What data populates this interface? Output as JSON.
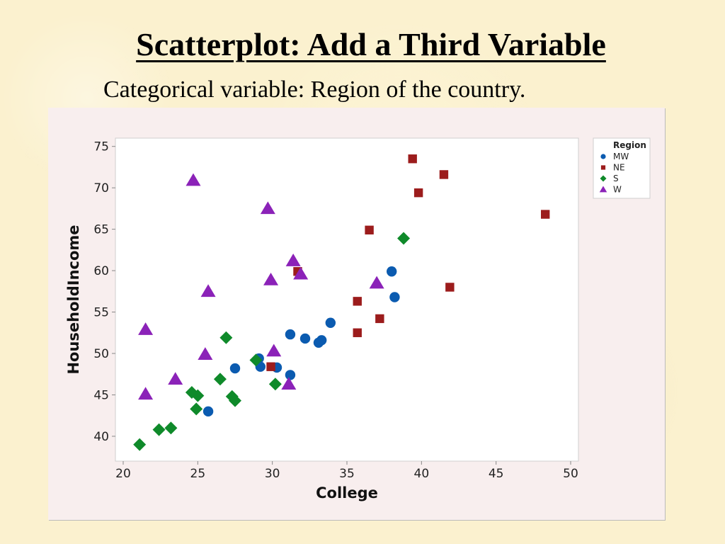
{
  "slide": {
    "title": "Scatterplot:  Add a Third Variable",
    "subtitle": "Categorical variable:  Region of the country."
  },
  "chart_data": {
    "type": "scatter",
    "title": "",
    "xlabel": "College",
    "ylabel": "HouseholdIncome",
    "xlim": [
      20,
      50
    ],
    "ylim": [
      37,
      76
    ],
    "xticks": [
      20,
      25,
      30,
      35,
      40,
      45,
      50
    ],
    "yticks": [
      40,
      45,
      50,
      55,
      60,
      65,
      70,
      75
    ],
    "grid": false,
    "legend": {
      "title": "Region",
      "placement": "top-right"
    },
    "series": [
      {
        "name": "MW",
        "marker": "circle",
        "color": "#0b5bb0",
        "points": [
          [
            25.7,
            43.0
          ],
          [
            27.5,
            48.2
          ],
          [
            29.1,
            49.4
          ],
          [
            29.2,
            48.4
          ],
          [
            30.3,
            48.3
          ],
          [
            31.2,
            47.4
          ],
          [
            31.2,
            52.3
          ],
          [
            32.2,
            51.8
          ],
          [
            33.1,
            51.3
          ],
          [
            33.3,
            51.6
          ],
          [
            33.9,
            53.7
          ],
          [
            38.0,
            59.9
          ],
          [
            38.2,
            56.8
          ]
        ]
      },
      {
        "name": "NE",
        "marker": "square",
        "color": "#9c1c1c",
        "points": [
          [
            29.9,
            48.4
          ],
          [
            31.7,
            59.9
          ],
          [
            35.7,
            52.5
          ],
          [
            35.7,
            56.3
          ],
          [
            36.5,
            64.9
          ],
          [
            37.2,
            54.2
          ],
          [
            39.4,
            73.5
          ],
          [
            39.8,
            69.4
          ],
          [
            41.5,
            71.6
          ],
          [
            41.9,
            58.0
          ],
          [
            48.3,
            66.8
          ]
        ]
      },
      {
        "name": "S",
        "marker": "diamond",
        "color": "#0f8a2a",
        "points": [
          [
            21.1,
            39.0
          ],
          [
            22.4,
            40.8
          ],
          [
            23.2,
            41.0
          ],
          [
            24.6,
            45.3
          ],
          [
            24.9,
            43.3
          ],
          [
            25.0,
            44.9
          ],
          [
            26.5,
            46.9
          ],
          [
            26.9,
            51.9
          ],
          [
            27.3,
            44.8
          ],
          [
            27.5,
            44.3
          ],
          [
            28.9,
            49.2
          ],
          [
            30.2,
            46.3
          ],
          [
            38.8,
            63.9
          ]
        ]
      },
      {
        "name": "W",
        "marker": "triangle",
        "color": "#8b22b8",
        "points": [
          [
            21.5,
            45.1
          ],
          [
            21.5,
            52.9
          ],
          [
            23.5,
            46.9
          ],
          [
            24.7,
            70.9
          ],
          [
            25.5,
            49.9
          ],
          [
            25.7,
            57.5
          ],
          [
            29.7,
            67.5
          ],
          [
            29.9,
            58.9
          ],
          [
            30.1,
            50.3
          ],
          [
            31.1,
            46.3
          ],
          [
            31.4,
            61.2
          ],
          [
            31.9,
            59.6
          ],
          [
            37.0,
            58.5
          ]
        ]
      }
    ]
  }
}
